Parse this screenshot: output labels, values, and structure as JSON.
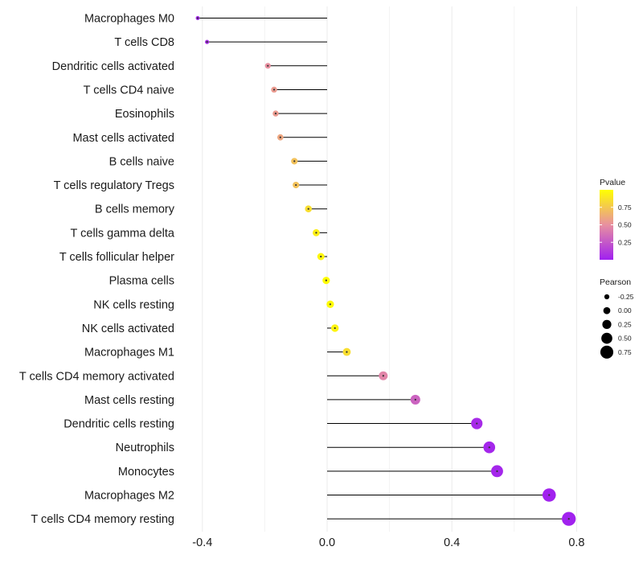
{
  "chart_data": {
    "type": "lollipop",
    "title": "",
    "xlabel": "",
    "ylabel": "",
    "xlim": [
      -0.42,
      0.81
    ],
    "xticks": [
      -0.4,
      0.0,
      0.4,
      0.8
    ],
    "xtick_labels": [
      "-0.4",
      "0.0",
      "0.4",
      "0.8"
    ],
    "grid": true,
    "legend_position": "right",
    "categories": [
      "Macrophages M0",
      "T cells CD8",
      "Dendritic cells activated",
      "T cells CD4 naive",
      "Eosinophils",
      "Mast cells activated",
      "B cells naive",
      "T cells regulatory  Tregs ",
      "B cells memory",
      "T cells gamma delta",
      "T cells follicular helper",
      "Plasma cells",
      "NK cells resting",
      "NK cells activated",
      "Macrophages M1",
      "T cells CD4 memory activated",
      "Mast cells resting",
      "Dendritic cells resting",
      "Neutrophils",
      "Monocytes",
      "Macrophages M2",
      "T cells CD4 memory resting"
    ],
    "values": [
      -0.415,
      -0.385,
      -0.19,
      -0.17,
      -0.165,
      -0.15,
      -0.105,
      -0.1,
      -0.06,
      -0.035,
      -0.02,
      -0.003,
      0.01,
      0.025,
      0.063,
      0.18,
      0.283,
      0.48,
      0.52,
      0.545,
      0.712,
      0.775
    ],
    "pvalues": [
      0.02,
      0.05,
      0.5,
      0.55,
      0.55,
      0.6,
      0.72,
      0.72,
      0.85,
      0.93,
      0.96,
      0.99,
      0.98,
      0.95,
      0.85,
      0.45,
      0.3,
      0.05,
      0.03,
      0.03,
      0.01,
      0.01
    ],
    "legend": {
      "pvalue_title": "Pvalue",
      "pvalue_ticks": [
        0.75,
        0.5,
        0.25
      ],
      "pvalue_tick_labels": [
        "0.75",
        "0.50",
        "0.25"
      ],
      "pvalue_range": [
        0.0,
        1.0
      ],
      "color_low": "#a020f0",
      "color_mid": "#e890a0",
      "color_high": "#ffff00",
      "pearson_title": "Pearson",
      "pearson_values": [
        -0.25,
        0.0,
        0.25,
        0.5,
        0.75
      ],
      "pearson_labels": [
        "-0.25",
        "0.00",
        "0.25",
        "0.50",
        "0.75"
      ]
    }
  }
}
